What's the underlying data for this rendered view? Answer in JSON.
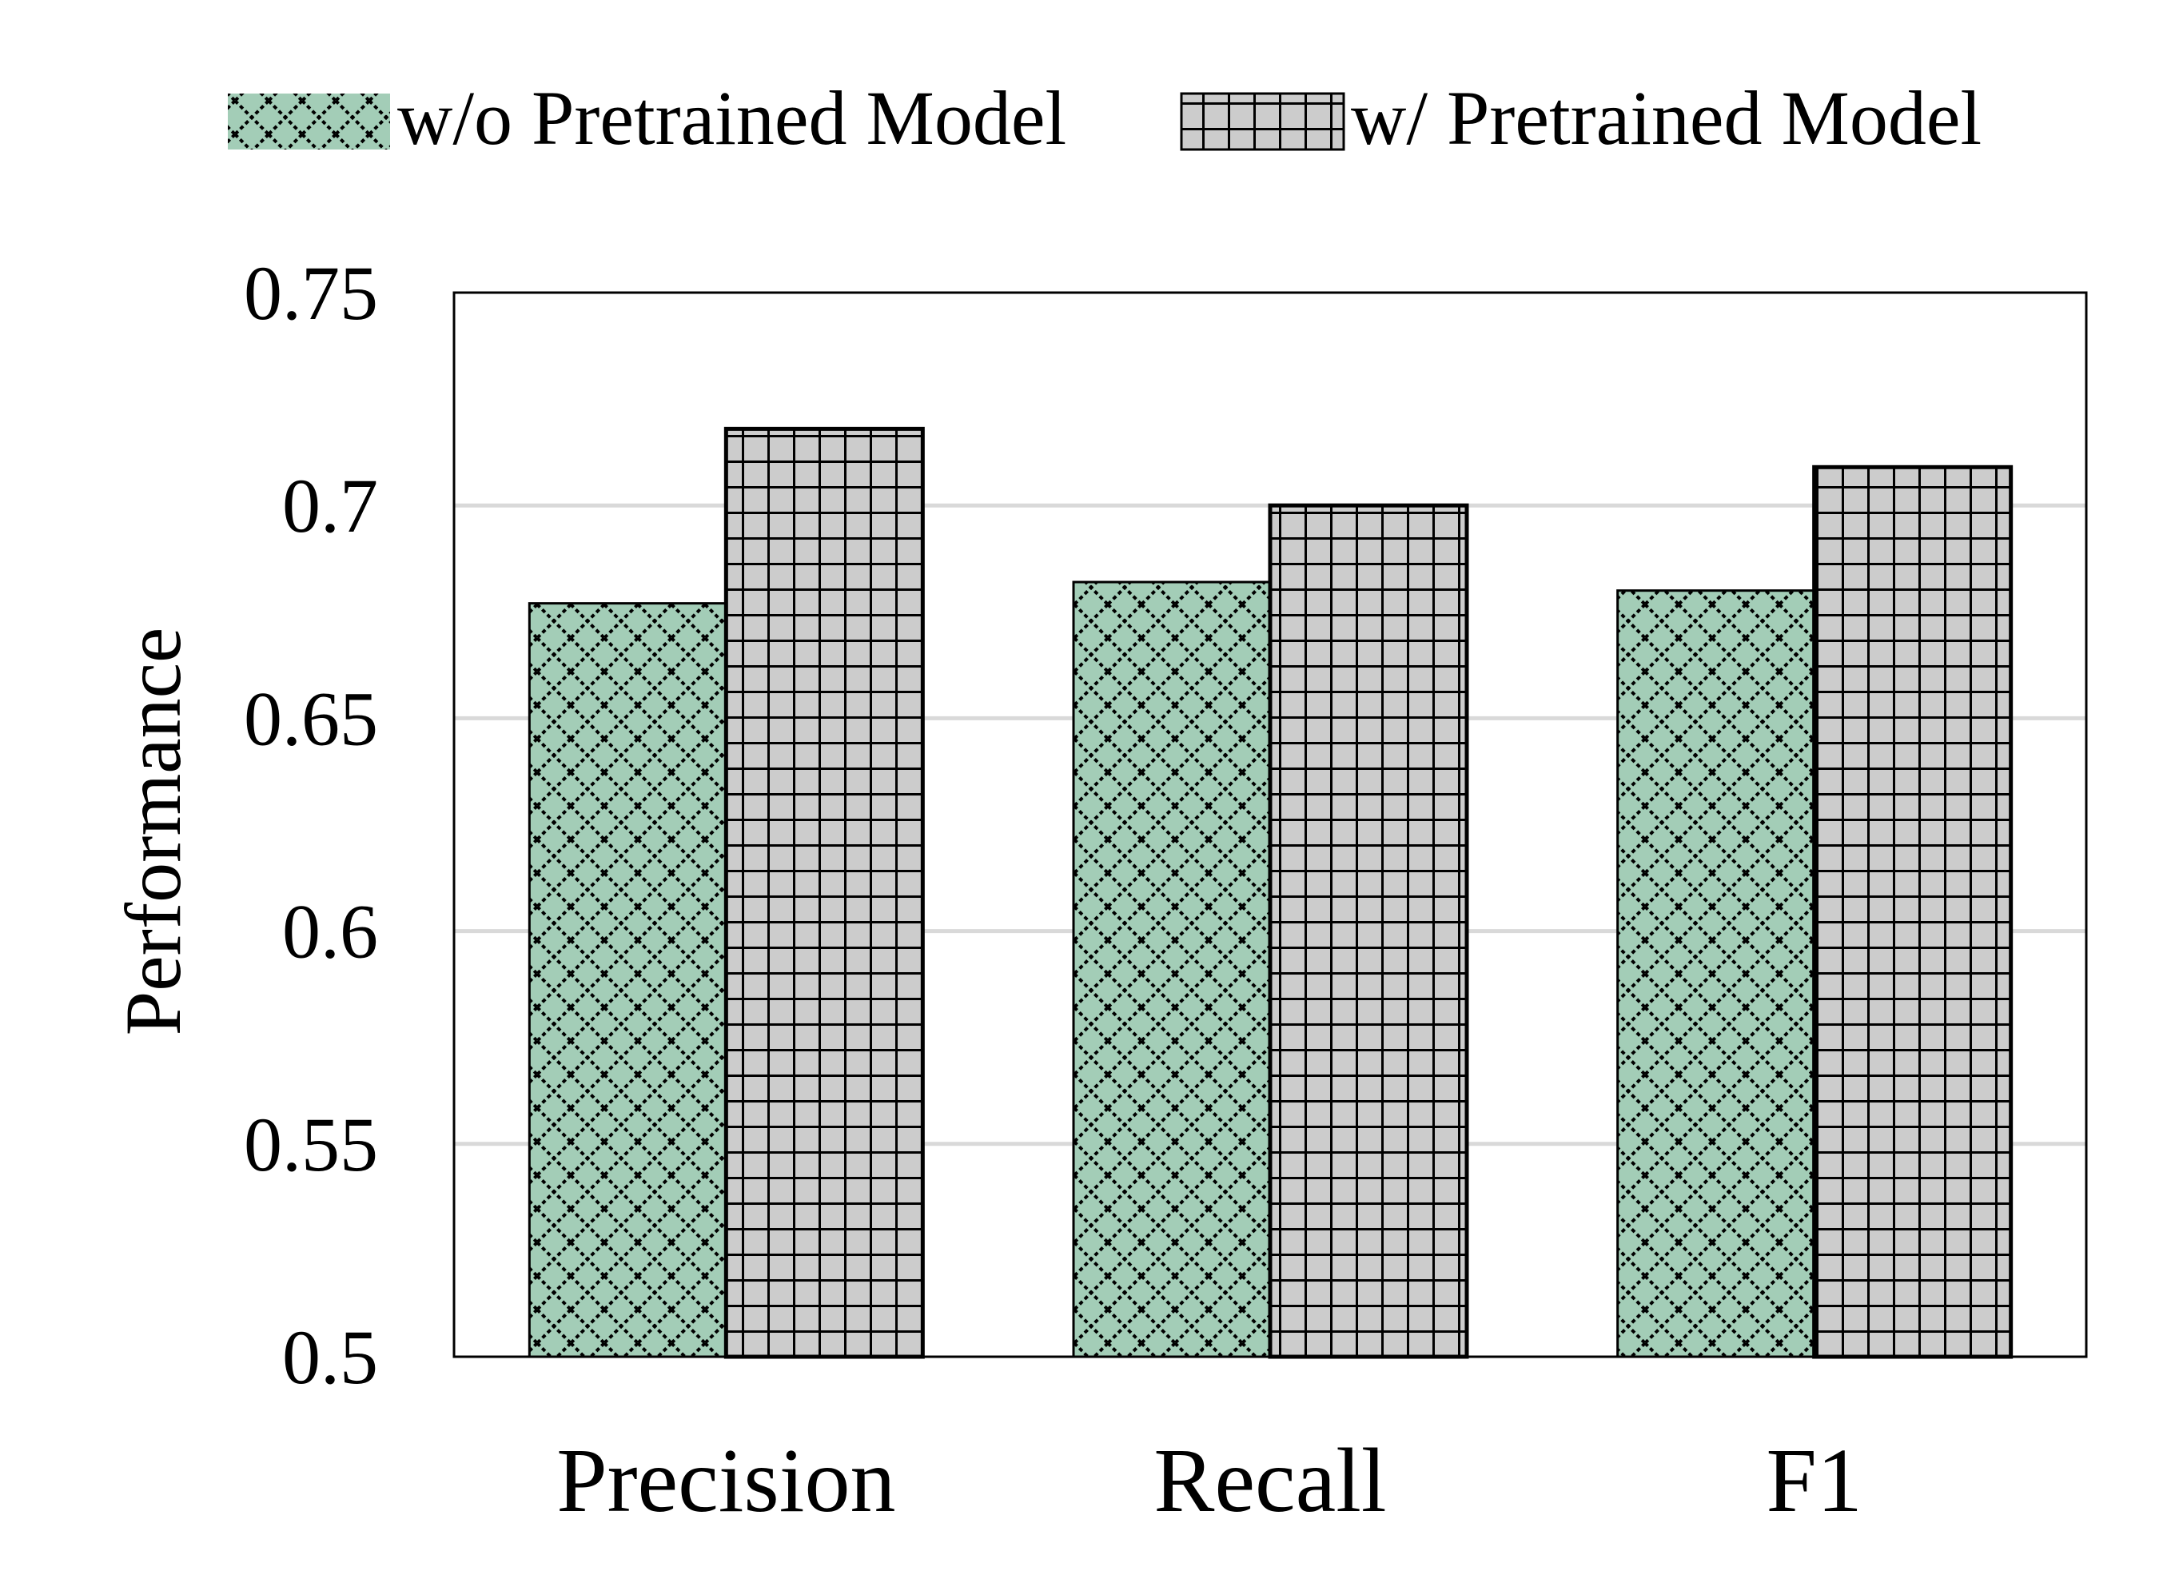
{
  "chart_data": {
    "type": "bar",
    "title": "",
    "xlabel": "",
    "ylabel": "Performance",
    "categories": [
      "Precision",
      "Recall",
      "F1"
    ],
    "series": [
      {
        "name": "w/o Pretrained Model",
        "values": [
          0.677,
          0.682,
          0.68
        ],
        "color": "#a3cdb7",
        "pattern": "diamond-crosshatch"
      },
      {
        "name": "w/ Pretrained Model",
        "values": [
          0.718,
          0.7,
          0.709
        ],
        "color": "#cccccc",
        "pattern": "square-grid"
      }
    ],
    "ylim": [
      0.5,
      0.75
    ],
    "yticks": [
      0.5,
      0.55,
      0.6,
      0.65,
      0.7,
      0.75
    ],
    "ytick_labels": [
      "0.5",
      "0.55",
      "0.6",
      "0.65",
      "0.7",
      "0.75"
    ],
    "grid": true,
    "legend_position": "top"
  }
}
